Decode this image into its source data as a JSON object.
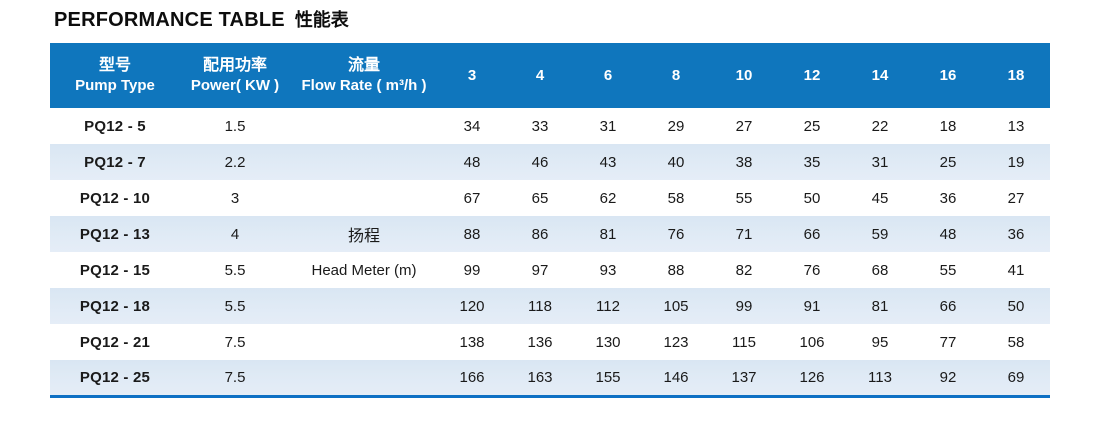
{
  "title": {
    "en": "PERFORMANCE TABLE",
    "zh": "性能表"
  },
  "chart_data": {
    "type": "table",
    "title": "PERFORMANCE TABLE 性能表",
    "header": {
      "pump_type_zh": "型号",
      "pump_type_en": "Pump Type",
      "power_zh": "配用功率",
      "power_en": "Power( KW )",
      "flow_zh": "流量",
      "flow_en": "Flow Rate ( m³/h )"
    },
    "flow_rate_values": [
      "3",
      "4",
      "6",
      "8",
      "10",
      "12",
      "14",
      "16",
      "18"
    ],
    "head_label_zh": "扬程",
    "head_label_en": "Head Meter (m)",
    "rows": [
      {
        "pump_type": "PQ12 - 5",
        "power_kw": "1.5",
        "head_m": [
          34,
          33,
          31,
          29,
          27,
          25,
          22,
          18,
          13
        ]
      },
      {
        "pump_type": "PQ12 - 7",
        "power_kw": "2.2",
        "head_m": [
          48,
          46,
          43,
          40,
          38,
          35,
          31,
          25,
          19
        ]
      },
      {
        "pump_type": "PQ12 - 10",
        "power_kw": "3",
        "head_m": [
          67,
          65,
          62,
          58,
          55,
          50,
          45,
          36,
          27
        ]
      },
      {
        "pump_type": "PQ12 - 13",
        "power_kw": "4",
        "head_m": [
          88,
          86,
          81,
          76,
          71,
          66,
          59,
          48,
          36
        ]
      },
      {
        "pump_type": "PQ12 - 15",
        "power_kw": "5.5",
        "head_m": [
          99,
          97,
          93,
          88,
          82,
          76,
          68,
          55,
          41
        ]
      },
      {
        "pump_type": "PQ12 - 18",
        "power_kw": "5.5",
        "head_m": [
          120,
          118,
          112,
          105,
          99,
          91,
          81,
          66,
          50
        ]
      },
      {
        "pump_type": "PQ12 - 21",
        "power_kw": "7.5",
        "head_m": [
          138,
          136,
          130,
          123,
          115,
          106,
          95,
          77,
          58
        ]
      },
      {
        "pump_type": "PQ12 - 25",
        "power_kw": "7.5",
        "head_m": [
          166,
          163,
          155,
          146,
          137,
          126,
          113,
          92,
          69
        ]
      }
    ]
  },
  "colors": {
    "header_bg": "#0f76bd",
    "header_text": "#ffffff",
    "stripe_bg": "#dde9f4",
    "bottom_border": "#0e70c4",
    "body_text": "#1a1a1a"
  }
}
